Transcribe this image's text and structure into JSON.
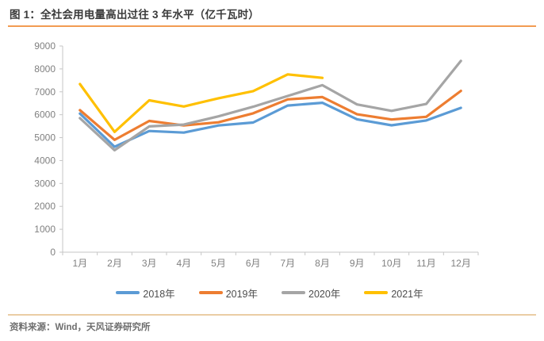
{
  "figure": {
    "title": "图 1：全社会用电量高出过往 3 年水平（亿千瓦时）",
    "source": "资料来源：Wind，天风证券研究所"
  },
  "colors": {
    "accent_rule": "#F29B52",
    "footer_rule": "#EACDA4",
    "axis_line": "#C6C6C6",
    "axis_text": "#808080",
    "title_text": "#3A3A3A",
    "legend_text": "#4D4D4D",
    "source_text": "#6E6E6E",
    "series_2018": "#5B9BD5",
    "series_2019": "#ED7D31",
    "series_2020": "#A5A5A5",
    "series_2021": "#FFC000"
  },
  "chart_data": {
    "type": "line",
    "title": "全社会用电量高出过往 3 年水平（亿千瓦时）",
    "xlabel": "",
    "ylabel": "",
    "categories": [
      "1月",
      "2月",
      "3月",
      "4月",
      "5月",
      "6月",
      "7月",
      "8月",
      "9月",
      "10月",
      "11月",
      "12月"
    ],
    "series": [
      {
        "name": "2018年",
        "color": "#5B9BD5",
        "values": [
          6050,
          4600,
          5290,
          5220,
          5530,
          5660,
          6400,
          6520,
          5800,
          5540,
          5750,
          6300
        ]
      },
      {
        "name": "2019年",
        "color": "#ED7D31",
        "values": [
          6200,
          4900,
          5730,
          5530,
          5670,
          6060,
          6670,
          6770,
          6020,
          5790,
          5910,
          7040
        ]
      },
      {
        "name": "2020年",
        "color": "#A5A5A5",
        "values": [
          5850,
          4450,
          5490,
          5570,
          5930,
          6350,
          6820,
          7290,
          6450,
          6170,
          6470,
          8350
        ]
      },
      {
        "name": "2021年",
        "color": "#FFC000",
        "values": [
          7340,
          5250,
          6630,
          6360,
          6720,
          7030,
          7760,
          7610,
          null,
          null,
          null,
          null
        ]
      }
    ],
    "ylim": [
      0,
      9000
    ],
    "yticks": [
      0,
      1000,
      2000,
      3000,
      4000,
      5000,
      6000,
      7000,
      8000,
      9000
    ],
    "grid": false,
    "legend_position": "bottom"
  }
}
